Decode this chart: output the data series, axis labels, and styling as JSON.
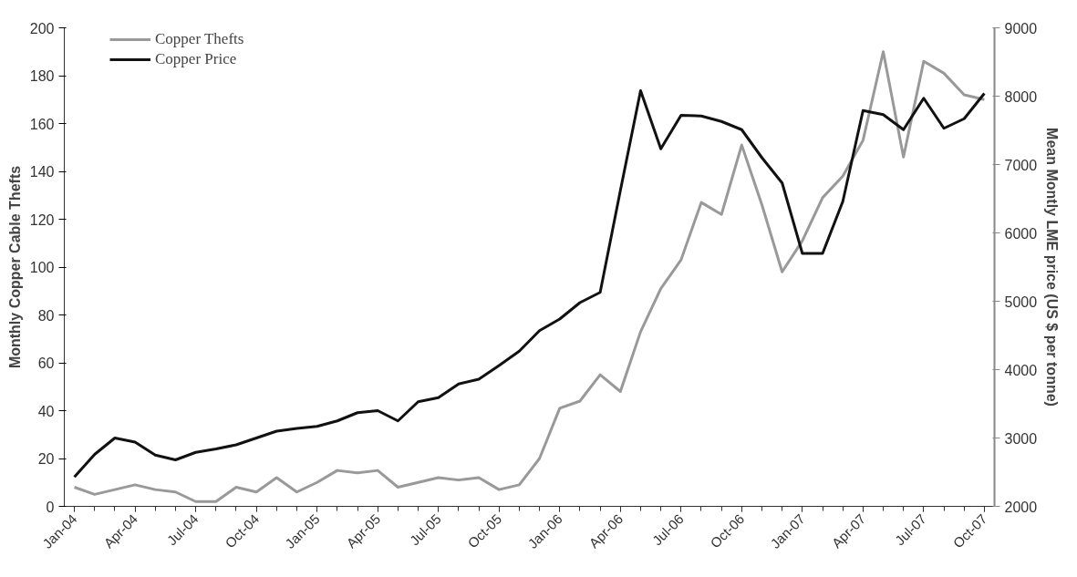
{
  "chart_data": {
    "type": "line",
    "xlabel": null,
    "ylabel": "Monthly Copper Cable Thefts",
    "y2label": "Mean Montly LME price (US $ per tonne)",
    "categories": [
      "Jan-04",
      null,
      null,
      "Apr-04",
      null,
      null,
      "Jul-04",
      null,
      null,
      "Oct-04",
      null,
      null,
      "Jan-05",
      null,
      null,
      "Apr-05",
      null,
      null,
      "Jul-05",
      null,
      null,
      "Oct-05",
      null,
      null,
      "Jan-06",
      null,
      null,
      "Apr-06",
      null,
      null,
      "Jul-06",
      null,
      null,
      "Oct-06",
      null,
      null,
      "Jan-07",
      null,
      null,
      "Apr-07",
      null,
      null,
      "Jul-07",
      null,
      null,
      "Oct-07"
    ],
    "series": [
      {
        "name": "Copper Thefts",
        "color": "#999999",
        "values": [
          8,
          5,
          7,
          9,
          7,
          6,
          2,
          2,
          8,
          6,
          12,
          6,
          10,
          15,
          14,
          15,
          8,
          10,
          12,
          11,
          12,
          7,
          9,
          20,
          41,
          44,
          55,
          48,
          73,
          91,
          103,
          127,
          122,
          151,
          126,
          98,
          111,
          129,
          138,
          153,
          190,
          146,
          186,
          181,
          172,
          170
        ]
      },
      {
        "name": "Copper Price",
        "color": "#111111",
        "axis": "y2",
        "values": [
          2430,
          2760,
          3000,
          2940,
          2750,
          2680,
          2790,
          2840,
          2900,
          3000,
          3100,
          3140,
          3170,
          3250,
          3370,
          3400,
          3250,
          3530,
          3590,
          3790,
          3860,
          4060,
          4270,
          4570,
          4740,
          4980,
          5130,
          6620,
          8080,
          7230,
          7720,
          7710,
          7630,
          7510,
          7100,
          6730,
          5700,
          5700,
          6460,
          7790,
          7730,
          7510,
          7970,
          7530,
          7670,
          8040
        ]
      }
    ],
    "ylim": [
      0,
      200
    ],
    "yticks": [
      0,
      20,
      40,
      60,
      80,
      100,
      120,
      140,
      160,
      180,
      200
    ],
    "y2lim": [
      2000,
      9000
    ],
    "y2ticks": [
      2000,
      3000,
      4000,
      5000,
      6000,
      7000,
      8000,
      9000
    ],
    "grid": false,
    "legend": "top left",
    "marker": "none",
    "line_style": "solid"
  }
}
